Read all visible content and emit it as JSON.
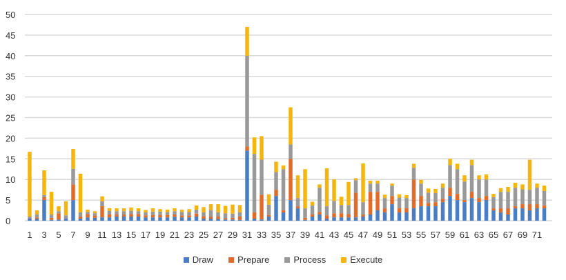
{
  "chart_data": {
    "type": "bar",
    "stacked": true,
    "title": "",
    "xlabel": "",
    "ylabel": "",
    "ylim": [
      0,
      50
    ],
    "yticks": [
      0,
      5,
      10,
      15,
      20,
      25,
      30,
      35,
      40,
      45,
      50
    ],
    "grid": true,
    "legend_position": "bottom",
    "categories": [
      1,
      2,
      3,
      4,
      5,
      6,
      7,
      8,
      9,
      10,
      11,
      12,
      13,
      14,
      15,
      16,
      17,
      18,
      19,
      20,
      21,
      22,
      23,
      24,
      25,
      26,
      27,
      28,
      29,
      30,
      31,
      32,
      33,
      34,
      35,
      36,
      37,
      38,
      39,
      40,
      41,
      42,
      43,
      44,
      45,
      46,
      47,
      48,
      49,
      50,
      51,
      52,
      53,
      54,
      55,
      56,
      57,
      58,
      59,
      60,
      61,
      62,
      63,
      64,
      65,
      66,
      67,
      68,
      69,
      70,
      71,
      72
    ],
    "xtick_labels": [
      "1",
      "3",
      "5",
      "7",
      "9",
      "11",
      "13",
      "15",
      "17",
      "19",
      "21",
      "23",
      "25",
      "27",
      "29",
      "31",
      "33",
      "35",
      "37",
      "39",
      "41",
      "43",
      "45",
      "47",
      "49",
      "51",
      "53",
      "55",
      "57",
      "59",
      "61",
      "63",
      "65",
      "67",
      "69",
      "71"
    ],
    "series": [
      {
        "name": "Draw",
        "color": "#4a7ec4",
        "values": [
          0.5,
          0.5,
          5,
          0.2,
          0.3,
          0.5,
          5,
          0.5,
          0.8,
          0.7,
          0.8,
          0.8,
          1,
          1,
          1,
          1,
          0.8,
          0.8,
          0.8,
          0.8,
          0.9,
          0.8,
          0.8,
          1,
          0.5,
          0.5,
          0.4,
          0.3,
          0.3,
          0.2,
          17,
          0.5,
          0.3,
          1,
          6,
          2,
          5,
          3,
          0.2,
          1,
          1.5,
          0.5,
          0.8,
          0.8,
          0.8,
          0.8,
          1,
          1.5,
          2.5,
          2,
          4,
          2,
          2,
          3,
          3.5,
          3.5,
          3.5,
          4.5,
          6,
          5,
          4.5,
          5.5,
          4.5,
          5,
          2.5,
          2,
          1.5,
          3,
          3,
          2.5,
          3,
          3
        ]
      },
      {
        "name": "Prepare",
        "color": "#e26b2a",
        "values": [
          0,
          0.3,
          0.7,
          0.5,
          1.5,
          0,
          3.8,
          0.5,
          0.8,
          0.6,
          2.7,
          0.7,
          0.5,
          0.5,
          0.6,
          0.6,
          0.5,
          0.6,
          0.6,
          0.6,
          0.6,
          0.5,
          0.5,
          0.7,
          0.6,
          0.5,
          0.6,
          0.3,
          0.4,
          0.8,
          1,
          1.5,
          6,
          0.4,
          1.5,
          0.5,
          10,
          0.5,
          0.5,
          0.5,
          0.6,
          0.8,
          1,
          1,
          0.8,
          6,
          0.5,
          5.5,
          4.5,
          1,
          2,
          1,
          1,
          7,
          2.5,
          0.8,
          1,
          0.8,
          2,
          1.5,
          0.5,
          1.5,
          1,
          1,
          0.5,
          1,
          1.5,
          0.5,
          1,
          1.5,
          1,
          0.7
        ]
      },
      {
        "name": "Process",
        "color": "#999999",
        "values": [
          0.5,
          0.7,
          0.5,
          0.8,
          0.5,
          0.8,
          3.8,
          1,
          0.5,
          0.5,
          1.2,
          0.9,
          0.8,
          0.8,
          0.8,
          0.7,
          0.7,
          0.8,
          0.8,
          0.7,
          0.8,
          0.8,
          0.8,
          1,
          0.9,
          1.5,
          1,
          1.2,
          1,
          1,
          22,
          14.2,
          8.5,
          2.5,
          4.3,
          10,
          3.5,
          2,
          2.3,
          2.2,
          5.9,
          2.2,
          3,
          2,
          2.2,
          3,
          3,
          2,
          2,
          2.5,
          2.5,
          2.6,
          2.5,
          2.8,
          3,
          2.5,
          2.2,
          2.7,
          5.5,
          6,
          4.5,
          6.5,
          4.5,
          4,
          2.7,
          4,
          4,
          4.5,
          3.6,
          3.5,
          4,
          3.5
        ]
      },
      {
        "name": "Execute",
        "color": "#f5b50f",
        "values": [
          15.7,
          1,
          6,
          5.5,
          1.2,
          3.4,
          4.8,
          9.4,
          0.6,
          0.5,
          1.2,
          0.6,
          0.7,
          0.7,
          0.8,
          0.7,
          0.6,
          0.8,
          0.6,
          0.6,
          0.7,
          0.6,
          0.7,
          1,
          1.3,
          1.5,
          2,
          1.8,
          2.2,
          1.8,
          7,
          4,
          5.7,
          2.5,
          2.5,
          0.9,
          9,
          5.5,
          9.5,
          0.9,
          0.8,
          9.2,
          5.2,
          2,
          5.6,
          0.5,
          9.4,
          0.7,
          0.7,
          0.8,
          0.5,
          0.8,
          0.7,
          1,
          0.9,
          1,
          1,
          1,
          1.5,
          1.3,
          1.5,
          1.3,
          1,
          1.2,
          0.8,
          0.9,
          1.2,
          1.2,
          1.2,
          7.3,
          1,
          1.3
        ]
      }
    ]
  }
}
